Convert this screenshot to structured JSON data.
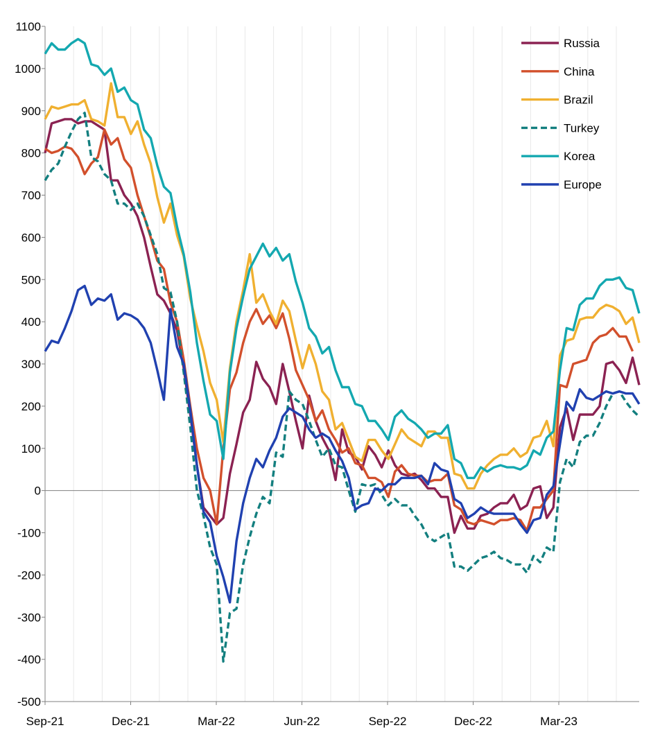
{
  "chart_data": {
    "type": "line",
    "title": "",
    "xlabel": "",
    "ylabel": "",
    "ylim": [
      -500,
      1100
    ],
    "yticks": [
      1100,
      1000,
      900,
      800,
      700,
      600,
      500,
      400,
      300,
      200,
      100,
      0,
      -100,
      -200,
      -300,
      -400,
      -500
    ],
    "xticks": [
      "Sep-21",
      "Dec-21",
      "Mar-22",
      "Jun-22",
      "Sep-22",
      "Dec-22",
      "Mar-23"
    ],
    "grid": "vertical",
    "legend": "top-right",
    "series": [
      {
        "name": "Russia",
        "color": "#8B2252",
        "dash": false,
        "values": [
          800,
          870,
          875,
          880,
          880,
          870,
          875,
          875,
          865,
          855,
          735,
          735,
          700,
          680,
          650,
          600,
          530,
          465,
          450,
          420,
          380,
          290,
          180,
          60,
          -40,
          -60,
          -80,
          -65,
          40,
          110,
          185,
          215,
          305,
          265,
          245,
          205,
          300,
          235,
          165,
          100,
          225,
          165,
          125,
          95,
          25,
          145,
          90,
          80,
          50,
          105,
          85,
          55,
          95,
          60,
          40,
          35,
          40,
          25,
          5,
          5,
          -15,
          -15,
          -100,
          -60,
          -90,
          -90,
          -60,
          -55,
          -40,
          -30,
          -30,
          -10,
          -45,
          -35,
          5,
          10,
          -65,
          -40,
          150,
          195,
          120,
          180,
          180,
          180,
          200,
          300,
          305,
          285,
          255,
          315,
          250
        ]
      },
      {
        "name": "China",
        "color": "#D2502C",
        "dash": false,
        "values": [
          810,
          800,
          805,
          815,
          810,
          790,
          750,
          775,
          790,
          855,
          820,
          835,
          785,
          765,
          700,
          650,
          600,
          545,
          525,
          445,
          400,
          310,
          200,
          100,
          30,
          0,
          -80,
          100,
          240,
          280,
          350,
          400,
          430,
          395,
          415,
          385,
          420,
          360,
          285,
          250,
          215,
          165,
          190,
          145,
          120,
          90,
          100,
          65,
          60,
          30,
          30,
          20,
          -15,
          45,
          60,
          40,
          35,
          35,
          20,
          25,
          25,
          40,
          -35,
          -45,
          -75,
          -80,
          -70,
          -75,
          -80,
          -70,
          -70,
          -65,
          -70,
          -95,
          -40,
          -40,
          -20,
          0,
          250,
          245,
          300,
          305,
          310,
          350,
          365,
          370,
          385,
          365,
          365,
          330
        ]
      },
      {
        "name": "Brazil",
        "color": "#F0B030",
        "dash": false,
        "values": [
          880,
          910,
          905,
          910,
          915,
          915,
          925,
          880,
          875,
          865,
          965,
          885,
          885,
          845,
          875,
          820,
          775,
          695,
          635,
          680,
          605,
          555,
          455,
          390,
          330,
          255,
          215,
          115,
          290,
          400,
          475,
          560,
          445,
          465,
          425,
          395,
          450,
          425,
          355,
          290,
          345,
          300,
          235,
          215,
          145,
          160,
          120,
          80,
          70,
          120,
          120,
          95,
          75,
          110,
          145,
          125,
          115,
          105,
          140,
          140,
          125,
          125,
          40,
          35,
          5,
          5,
          40,
          60,
          75,
          85,
          85,
          100,
          80,
          90,
          125,
          130,
          165,
          105,
          320,
          355,
          360,
          405,
          410,
          410,
          430,
          440,
          435,
          425,
          395,
          410,
          350
        ]
      },
      {
        "name": "Turkey",
        "color": "#137F7F",
        "dash": true,
        "values": [
          735,
          760,
          775,
          815,
          850,
          880,
          895,
          790,
          780,
          750,
          735,
          680,
          680,
          665,
          680,
          650,
          605,
          560,
          480,
          470,
          400,
          280,
          150,
          0,
          -60,
          -135,
          -175,
          -405,
          -290,
          -280,
          -175,
          -110,
          -55,
          -15,
          -30,
          90,
          80,
          235,
          215,
          205,
          165,
          120,
          80,
          100,
          60,
          55,
          0,
          -50,
          15,
          10,
          15,
          -10,
          -35,
          -20,
          -35,
          -35,
          -60,
          -80,
          -110,
          -120,
          -110,
          -100,
          -180,
          -180,
          -190,
          -175,
          -160,
          -155,
          -145,
          -160,
          -165,
          -175,
          -175,
          -195,
          -155,
          -170,
          -135,
          -145,
          20,
          75,
          55,
          115,
          130,
          130,
          160,
          200,
          230,
          235,
          210,
          190,
          175
        ]
      },
      {
        "name": "Korea",
        "color": "#14A8B0",
        "dash": false,
        "values": [
          1035,
          1060,
          1045,
          1045,
          1060,
          1070,
          1060,
          1010,
          1005,
          985,
          1000,
          945,
          955,
          925,
          915,
          855,
          835,
          770,
          720,
          705,
          625,
          560,
          470,
          350,
          260,
          180,
          165,
          75,
          280,
          385,
          460,
          525,
          555,
          585,
          555,
          575,
          545,
          560,
          495,
          445,
          385,
          365,
          325,
          340,
          285,
          245,
          245,
          205,
          200,
          165,
          165,
          145,
          120,
          175,
          190,
          170,
          160,
          145,
          125,
          135,
          135,
          155,
          75,
          65,
          30,
          30,
          55,
          45,
          55,
          60,
          55,
          55,
          50,
          60,
          95,
          85,
          125,
          140,
          285,
          385,
          380,
          440,
          455,
          455,
          485,
          500,
          500,
          505,
          480,
          475,
          420
        ]
      },
      {
        "name": "Europe",
        "color": "#2041B0",
        "dash": false,
        "values": [
          330,
          355,
          350,
          385,
          425,
          475,
          485,
          440,
          455,
          450,
          465,
          405,
          420,
          415,
          405,
          385,
          350,
          285,
          215,
          430,
          340,
          300,
          190,
          60,
          -50,
          -75,
          -155,
          -205,
          -265,
          -120,
          -30,
          30,
          75,
          55,
          95,
          125,
          175,
          195,
          185,
          175,
          145,
          125,
          135,
          125,
          95,
          70,
          30,
          -45,
          -35,
          -30,
          5,
          0,
          15,
          15,
          30,
          30,
          30,
          35,
          15,
          65,
          50,
          45,
          -20,
          -30,
          -65,
          -55,
          -40,
          -50,
          -55,
          -55,
          -55,
          -55,
          -80,
          -100,
          -70,
          -65,
          -10,
          10,
          110,
          210,
          190,
          240,
          220,
          215,
          225,
          235,
          230,
          235,
          230,
          230,
          205
        ]
      }
    ]
  }
}
